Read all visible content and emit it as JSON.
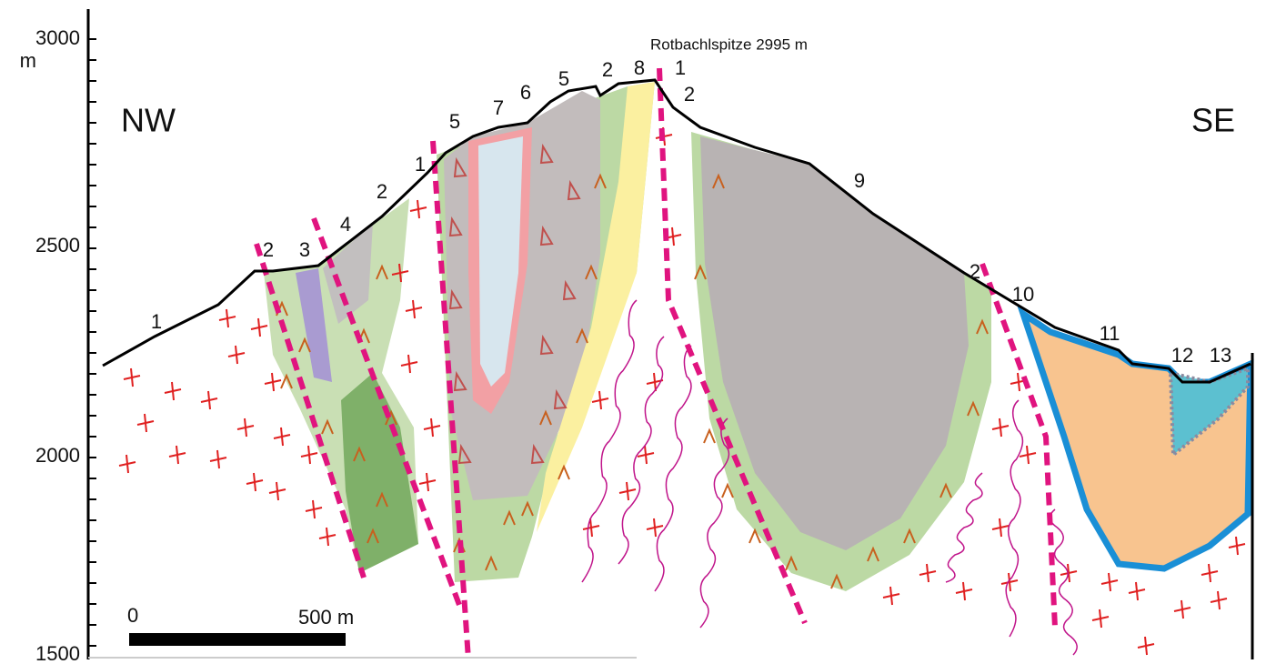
{
  "axis": {
    "ticks": [
      "3000",
      "2500",
      "2000",
      "1500"
    ],
    "unit": "m"
  },
  "orientation": {
    "left": "NW",
    "right": "SE"
  },
  "peak_label": "Rotbachlspitze 2995 m",
  "unit_labels": [
    "1",
    "2",
    "3",
    "4",
    "2",
    "1",
    "5",
    "7",
    "6",
    "5",
    "2",
    "8",
    "1",
    "2",
    "9",
    "2",
    "10",
    "11",
    "12",
    "13"
  ],
  "scale_bar": {
    "start": "0",
    "end": "500 m"
  }
}
